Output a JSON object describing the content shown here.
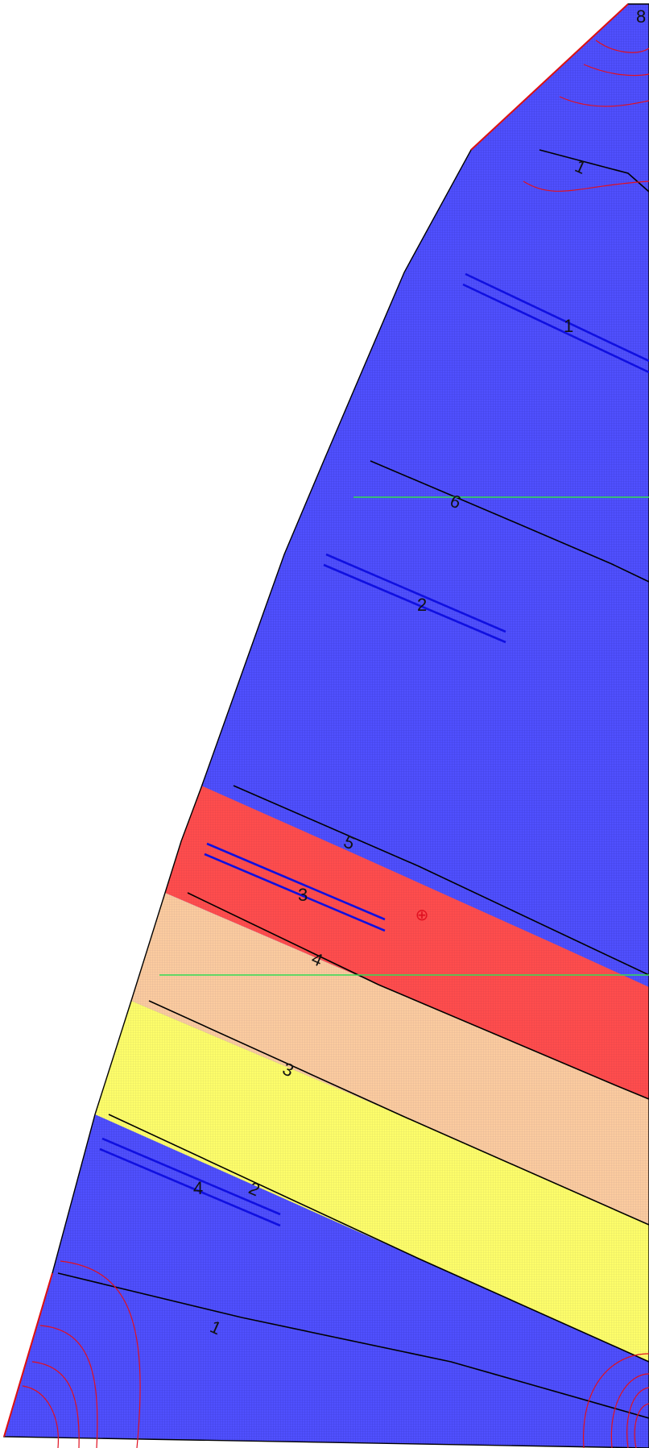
{
  "colors": {
    "blue_zone": "#5050ff",
    "red_zone": "#ff4d4d",
    "peach_zone": "#fbcb9f",
    "yellow_zone": "#fdfd6a",
    "boundary_line": "#000000",
    "blue_bar": "#1010e0",
    "contour": "#e01020",
    "guide_line": "#33dd55",
    "edge_red": "#dd1010"
  },
  "corner_label": "8",
  "zone_labels": [
    "1",
    "6",
    "5",
    "4",
    "3",
    "2",
    "1"
  ],
  "bar_labels": [
    "1",
    "2",
    "3",
    "4"
  ],
  "marker_symbol": "⊕"
}
